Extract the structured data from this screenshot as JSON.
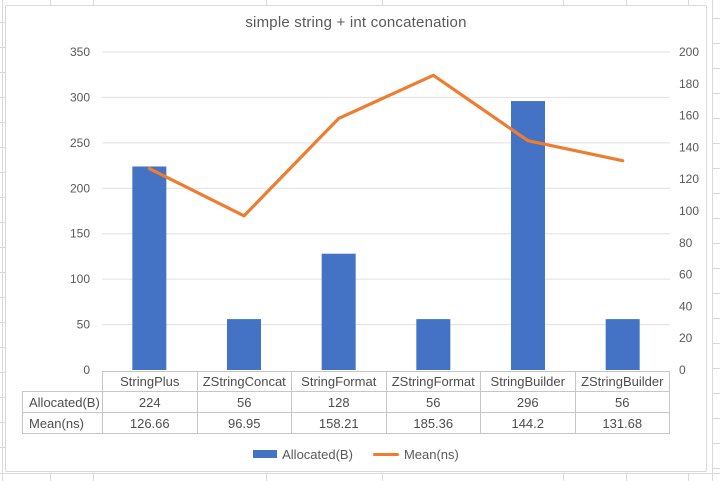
{
  "chart_data": {
    "type": "combo-bar-line",
    "title": "simple string + int concatenation",
    "categories": [
      "StringPlus",
      "ZStringConcat",
      "StringFormat",
      "ZStringFormat",
      "StringBuilder",
      "ZStringBuilder"
    ],
    "series": [
      {
        "name": "Allocated(B)",
        "type": "bar",
        "axis": "left",
        "color": "#4472C4",
        "values": [
          224,
          56,
          128,
          56,
          296,
          56
        ]
      },
      {
        "name": "Mean(ns)",
        "type": "line",
        "axis": "right",
        "color": "#ED7D31",
        "values": [
          126.66,
          96.95,
          158.21,
          185.36,
          144.2,
          131.68
        ]
      }
    ],
    "left_axis": {
      "min": 0,
      "max": 350,
      "step": 50,
      "ticks": [
        0,
        50,
        100,
        150,
        200,
        250,
        300,
        350
      ]
    },
    "right_axis": {
      "min": 0,
      "max": 200,
      "step": 20,
      "ticks": [
        0,
        20,
        40,
        60,
        80,
        100,
        120,
        140,
        160,
        180,
        200
      ]
    },
    "grid": true,
    "legend_position": "bottom",
    "data_table_shown": true
  },
  "colors": {
    "bar": "#4472C4",
    "line": "#ED7D31",
    "plot_gridline": "#E0E0E0",
    "sheet_gridline": "#D9D9D9",
    "chart_border": "#D9D9D9",
    "table_border": "#C6C6C6",
    "text": "#595959"
  }
}
